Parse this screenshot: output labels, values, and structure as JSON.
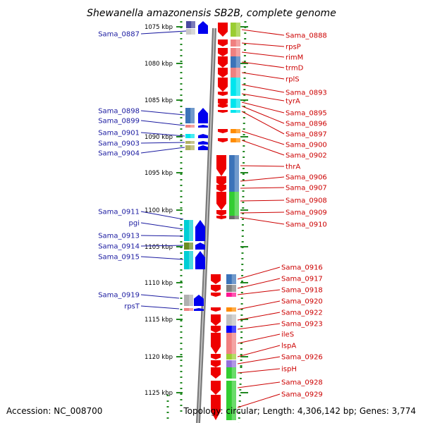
{
  "title": "Shewanella amazonensis SB2B, complete genome",
  "footer": {
    "accession": "Accession: NC_008700",
    "stats": "Topology: circular; Length: 4,306,142 bp; Genes: 3,774"
  },
  "colors": {
    "forward_strand": "#0000ee",
    "reverse_strand": "#ee0000",
    "left_label": "#1a1aa0",
    "right_label": "#cc0000",
    "dots": "#228822"
  },
  "kbp_ticks": [
    "1075 kbp",
    "1080 kbp",
    "1085 kbp",
    "1090 kbp",
    "1095 kbp",
    "1100 kbp",
    "1105 kbp",
    "1110 kbp",
    "1115 kbp",
    "1120 kbp",
    "1125 kbp"
  ],
  "left_genes": [
    {
      "label": "Sama_0887",
      "strand": "+",
      "ramp": [
        "#4a4aa0",
        "#c8c8c8"
      ]
    },
    {
      "label": "Sama_0898",
      "strand": "+",
      "ramp": [
        "#3b73b9"
      ]
    },
    {
      "label": "Sama_0899",
      "strand": "+",
      "ramp": [
        "#f08080"
      ]
    },
    {
      "label": "Sama_0901",
      "strand": "+",
      "ramp": [
        "#00e5ee"
      ]
    },
    {
      "label": "Sama_0903",
      "strand": "+",
      "ramp": [
        "#b0b060"
      ]
    },
    {
      "label": "Sama_0904",
      "strand": "+",
      "ramp": [
        "#b0b060"
      ]
    },
    {
      "label": "Sama_0911",
      "strand": "+",
      "ramp": [
        "#00cfd6"
      ]
    },
    {
      "label": "pgi",
      "strand": "+",
      "ramp": [
        "#00cfd6"
      ]
    },
    {
      "label": "Sama_0913",
      "strand": "+",
      "ramp": [
        "#00cfd6"
      ]
    },
    {
      "label": "Sama_0914",
      "strand": "+",
      "ramp": [
        "#6b8e23"
      ]
    },
    {
      "label": "Sama_0915",
      "strand": "+",
      "ramp": [
        "#00cfd6"
      ]
    },
    {
      "label": "Sama_0919",
      "strand": "+",
      "ramp": [
        "#b0b0b0"
      ]
    },
    {
      "label": "rpsT",
      "strand": "+",
      "ramp": [
        "#f08080"
      ]
    }
  ],
  "right_genes": [
    {
      "label": "Sama_0888",
      "strand": "-",
      "ramp": [
        "#9acd32"
      ]
    },
    {
      "label": "rpsP",
      "strand": "-",
      "ramp": [
        "#f08080"
      ]
    },
    {
      "label": "rimM",
      "strand": "-",
      "ramp": [
        "#f08080"
      ]
    },
    {
      "label": "trmD",
      "strand": "-",
      "ramp": [
        "#3b73b9"
      ]
    },
    {
      "label": "rplS",
      "strand": "-",
      "ramp": [
        "#f08080"
      ]
    },
    {
      "label": "Sama_0893",
      "strand": "-",
      "ramp": [
        "#00e5ee"
      ]
    },
    {
      "label": "tyrA",
      "strand": "-",
      "ramp": [
        "#00e5ee"
      ]
    },
    {
      "label": "Sama_0895",
      "strand": "-",
      "ramp": [
        "#00e5ee"
      ]
    },
    {
      "label": "Sama_0896",
      "strand": "-",
      "ramp": [
        "#00e5ee"
      ]
    },
    {
      "label": "Sama_0897",
      "strand": "-",
      "ramp": [
        "#00e5ee"
      ]
    },
    {
      "label": "Sama_0900",
      "strand": "-",
      "ramp": [
        "#ff8c00"
      ]
    },
    {
      "label": "Sama_0902",
      "strand": "-",
      "ramp": [
        "#ff8c00"
      ]
    },
    {
      "label": "thrA",
      "strand": "-",
      "ramp": [
        "#3b73b9"
      ]
    },
    {
      "label": "Sama_0906",
      "strand": "-",
      "ramp": [
        "#3b73b9"
      ]
    },
    {
      "label": "Sama_0907",
      "strand": "-",
      "ramp": [
        "#3b73b9"
      ]
    },
    {
      "label": "Sama_0908",
      "strand": "-",
      "ramp": [
        "#32cd32"
      ]
    },
    {
      "label": "Sama_0909",
      "strand": "-",
      "ramp": [
        "#32cd32"
      ]
    },
    {
      "label": "Sama_0910",
      "strand": "-",
      "ramp": [
        "#696969"
      ]
    },
    {
      "label": "Sama_0916",
      "strand": "-",
      "ramp": [
        "#3b73b9"
      ]
    },
    {
      "label": "Sama_0917",
      "strand": "-",
      "ramp": [
        "#808080"
      ]
    },
    {
      "label": "Sama_0918",
      "strand": "-",
      "ramp": [
        "#ff1493"
      ]
    },
    {
      "label": "Sama_0920",
      "strand": "-",
      "ramp": [
        "#ff8c00"
      ]
    },
    {
      "label": "Sama_0922",
      "strand": "-",
      "ramp": [
        "#c0c0c0"
      ]
    },
    {
      "label": "Sama_0923",
      "strand": "-",
      "ramp": [
        "#0000ff"
      ]
    },
    {
      "label": "ileS",
      "strand": "-",
      "ramp": [
        "#f08080"
      ]
    },
    {
      "label": "lspA",
      "strand": "-",
      "ramp": [
        "#9acd32"
      ]
    },
    {
      "label": "Sama_0926",
      "strand": "-",
      "ramp": [
        "#9370db"
      ]
    },
    {
      "label": "ispH",
      "strand": "-",
      "ramp": [
        "#32cd32"
      ]
    },
    {
      "label": "Sama_0928",
      "strand": "-",
      "ramp": [
        "#32cd32"
      ]
    },
    {
      "label": "Sama_0929",
      "strand": "-",
      "ramp": [
        "#32cd32"
      ]
    }
  ]
}
